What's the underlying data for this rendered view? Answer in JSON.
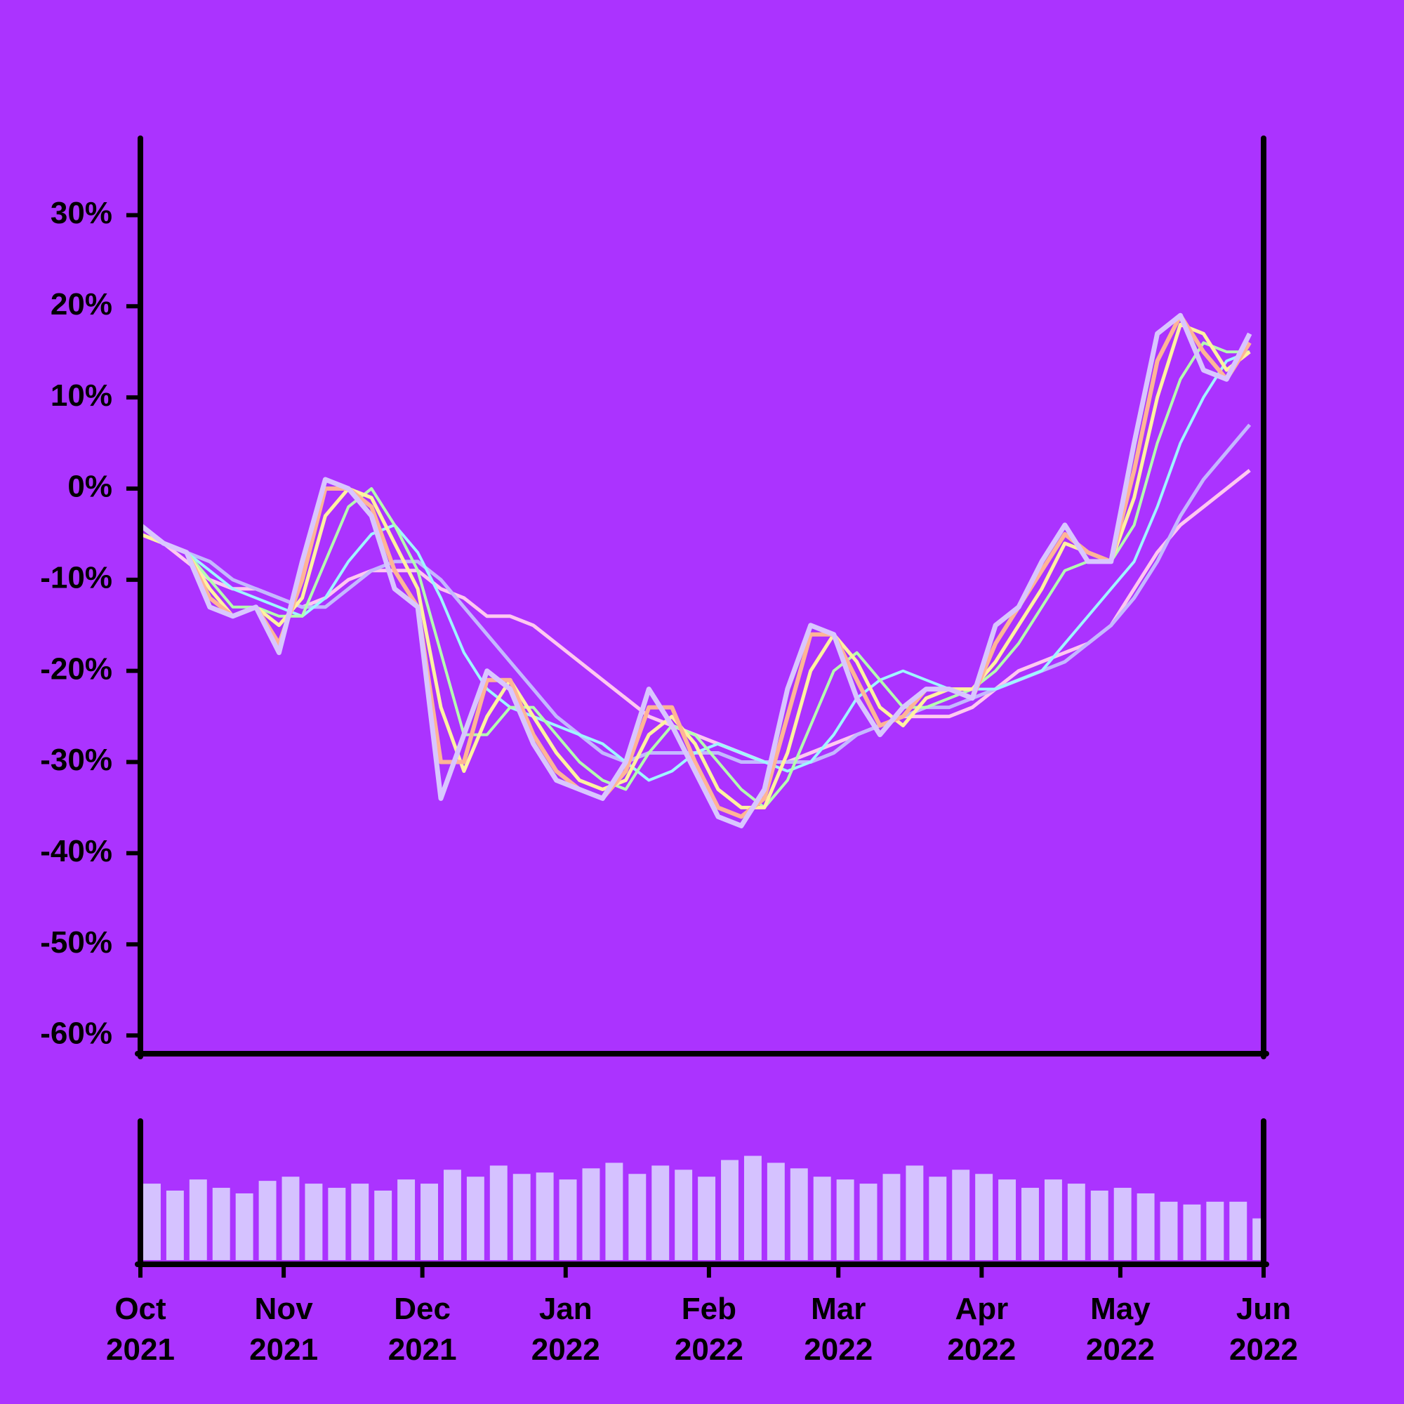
{
  "chart_data": [
    {
      "type": "line",
      "x": [
        0,
        5,
        10,
        15,
        20,
        25,
        30,
        35,
        40,
        45,
        50,
        55,
        60,
        65,
        70,
        75,
        80,
        85,
        90,
        95,
        100,
        105,
        110,
        115,
        120,
        125,
        130,
        135,
        140,
        145,
        150,
        155,
        160,
        165,
        170,
        175,
        180,
        185,
        190,
        195,
        200,
        205,
        210,
        215,
        220,
        225,
        230,
        235,
        240
      ],
      "xlim": [
        0,
        243
      ],
      "ylim": [
        -62,
        38.2
      ],
      "yticks": [
        {
          "value": 30,
          "label": "30%"
        },
        {
          "value": 20,
          "label": "20%"
        },
        {
          "value": 10,
          "label": "10%"
        },
        {
          "value": 0,
          "label": "0%"
        },
        {
          "value": -10,
          "label": "-10%"
        },
        {
          "value": -20,
          "label": "-20%"
        },
        {
          "value": -30,
          "label": "-30%"
        },
        {
          "value": -40,
          "label": "-40%"
        },
        {
          "value": -50,
          "label": "-50%"
        },
        {
          "value": -60,
          "label": "-60%"
        }
      ],
      "series": [
        {
          "color": "#d9c6ff",
          "width": 7,
          "values": [
            -4,
            -6,
            -7,
            -13,
            -14,
            -13,
            -18,
            -8,
            1,
            0,
            -3,
            -11,
            -13,
            -34,
            -27,
            -20,
            -22,
            -28,
            -32,
            -33,
            -34,
            -30,
            -22,
            -26,
            -31,
            -36,
            -37,
            -33,
            -22,
            -15,
            -16,
            -23,
            -27,
            -24,
            -22,
            -22,
            -23,
            -15,
            -13,
            -8,
            -4,
            -8,
            -8,
            5,
            17,
            19,
            13,
            12,
            17
          ]
        },
        {
          "color": "#ffb596",
          "width": 6,
          "values": [
            -4,
            -6,
            -7,
            -12,
            -14,
            -13,
            -17,
            -10,
            0,
            0,
            -2,
            -9,
            -13,
            -30,
            -30,
            -21,
            -21,
            -27,
            -31,
            -33,
            -34,
            -31,
            -24,
            -24,
            -30,
            -35,
            -36,
            -34,
            -25,
            -16,
            -16,
            -21,
            -26,
            -25,
            -22,
            -22,
            -23,
            -17,
            -13,
            -9,
            -5,
            -7,
            -8,
            2,
            14,
            19,
            15,
            12,
            16
          ]
        },
        {
          "color": "#fff2a0",
          "width": 5,
          "values": [
            -5,
            -6,
            -7,
            -11,
            -14,
            -13,
            -15,
            -12,
            -3,
            0,
            -1,
            -6,
            -11,
            -24,
            -31,
            -25,
            -21,
            -25,
            -29,
            -32,
            -33,
            -32,
            -27,
            -25,
            -28,
            -33,
            -35,
            -35,
            -29,
            -20,
            -16,
            -19,
            -24,
            -26,
            -23,
            -22,
            -22,
            -19,
            -15,
            -11,
            -6,
            -7,
            -8,
            -1,
            10,
            18,
            17,
            13,
            15
          ]
        },
        {
          "color": "#b4ffb0",
          "width": 4,
          "values": [
            -5,
            -6,
            -7,
            -10,
            -13,
            -13,
            -14,
            -14,
            -8,
            -2,
            0,
            -4,
            -9,
            -18,
            -27,
            -27,
            -24,
            -24,
            -27,
            -30,
            -32,
            -33,
            -29,
            -26,
            -27,
            -30,
            -33,
            -35,
            -32,
            -26,
            -20,
            -18,
            -21,
            -24,
            -24,
            -23,
            -22,
            -20,
            -17,
            -13,
            -9,
            -8,
            -8,
            -4,
            5,
            12,
            16,
            15,
            15
          ]
        },
        {
          "color": "#9ff5ff",
          "width": 4,
          "values": [
            -5,
            -6,
            -7,
            -9,
            -11,
            -12,
            -13,
            -14,
            -12,
            -8,
            -5,
            -4,
            -7,
            -12,
            -18,
            -22,
            -24,
            -25,
            -26,
            -27,
            -28,
            -30,
            -32,
            -31,
            -29,
            -28,
            -29,
            -30,
            -31,
            -30,
            -27,
            -23,
            -21,
            -20,
            -21,
            -22,
            -22,
            -22,
            -21,
            -20,
            -17,
            -14,
            -11,
            -8,
            -2,
            5,
            10,
            14,
            15
          ]
        },
        {
          "color": "#c4b8ff",
          "width": 5,
          "values": [
            -5,
            -6,
            -7,
            -8,
            -10,
            -11,
            -12,
            -13,
            -13,
            -11,
            -9,
            -8,
            -8,
            -10,
            -13,
            -16,
            -19,
            -22,
            -25,
            -27,
            -29,
            -30,
            -29,
            -29,
            -29,
            -29,
            -30,
            -30,
            -30,
            -30,
            -29,
            -27,
            -26,
            -25,
            -24,
            -24,
            -23,
            -22,
            -21,
            -20,
            -19,
            -17,
            -15,
            -12,
            -8,
            -3,
            1,
            4,
            7
          ]
        },
        {
          "color": "#ffc8f0",
          "width": 5,
          "values": [
            -5,
            -6,
            -8,
            -10,
            -11,
            -11,
            -12,
            -13,
            -12,
            -10,
            -9,
            -9,
            -9,
            -11,
            -12,
            -14,
            -14,
            -15,
            -17,
            -19,
            -21,
            -23,
            -25,
            -26,
            -27,
            -28,
            -29,
            -30,
            -30,
            -29,
            -28,
            -27,
            -26,
            -25,
            -25,
            -25,
            -24,
            -22,
            -20,
            -19,
            -18,
            -17,
            -15,
            -11,
            -7,
            -4,
            -2,
            0,
            2
          ]
        }
      ]
    },
    {
      "type": "bar",
      "color": "#d5c2ff",
      "x": [
        0,
        5,
        10,
        15,
        20,
        25,
        30,
        35,
        40,
        45,
        50,
        55,
        60,
        65,
        70,
        75,
        80,
        85,
        90,
        95,
        100,
        105,
        110,
        115,
        120,
        125,
        130,
        135,
        140,
        145,
        150,
        155,
        160,
        165,
        170,
        175,
        180,
        185,
        190,
        195,
        200,
        205,
        210,
        215,
        220,
        225,
        230,
        235,
        240
      ],
      "xlim": [
        0,
        243
      ],
      "ylim": [
        0,
        100
      ],
      "values": [
        55,
        50,
        58,
        52,
        48,
        57,
        60,
        55,
        52,
        55,
        50,
        58,
        55,
        65,
        60,
        68,
        62,
        63,
        58,
        66,
        70,
        62,
        68,
        65,
        60,
        72,
        75,
        70,
        66,
        60,
        58,
        55,
        62,
        68,
        60,
        65,
        62,
        58,
        52,
        58,
        55,
        50,
        52,
        48,
        42,
        40,
        42,
        42,
        30
      ],
      "xticks": [
        {
          "value": 0,
          "label": "Oct\n2021"
        },
        {
          "value": 31,
          "label": "Nov\n2021"
        },
        {
          "value": 61,
          "label": "Dec\n2021"
        },
        {
          "value": 92,
          "label": "Jan\n2022"
        },
        {
          "value": 123,
          "label": "Feb\n2022"
        },
        {
          "value": 151,
          "label": "Mar\n2022"
        },
        {
          "value": 182,
          "label": "Apr\n2022"
        },
        {
          "value": 212,
          "label": "May\n2022"
        },
        {
          "value": 243,
          "label": "Jun\n2022"
        }
      ]
    }
  ]
}
